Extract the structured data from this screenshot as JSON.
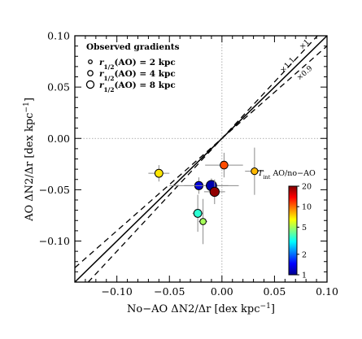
{
  "chart_data": {
    "type": "scatter",
    "title": "",
    "xlabel": "No−AO ΔN2/Δr  [dex kpc",
    "xlabel_exp": "−1",
    "xlabel_close": "]",
    "ylabel": "AO ΔN2/Δr  [dex kpc",
    "ylabel_exp": "−1",
    "ylabel_close": "]",
    "xlim": [
      -0.14,
      0.1
    ],
    "ylim": [
      -0.14,
      0.1
    ],
    "x_ticks": [
      -0.1,
      -0.05,
      0.0,
      0.05,
      0.1
    ],
    "x_tick_labels": [
      "−0.10",
      "−0.05",
      "0.00",
      "0.05",
      "0.10"
    ],
    "y_ticks": [
      -0.1,
      -0.05,
      0.0,
      0.05,
      0.1
    ],
    "y_tick_labels": [
      "−0.10",
      "−0.05",
      "0.00",
      "0.05",
      "0.10"
    ],
    "grid": false,
    "zero_lines": true,
    "reference_lines": [
      {
        "label": "×1",
        "slope": 1.0,
        "style": "solid"
      },
      {
        "label": "×1.1",
        "slope": 1.1,
        "style": "dashed"
      },
      {
        "label": "×0.9",
        "slope": 0.9,
        "style": "dashed"
      }
    ],
    "size_legend": {
      "title": "Observed gradients",
      "entries": [
        {
          "label_main": "r",
          "label_sub": "1/2",
          "label_rest": "(AO) = 2 kpc",
          "r_half_kpc": 2
        },
        {
          "label_main": "r",
          "label_sub": "1/2",
          "label_rest": "(AO) = 4 kpc",
          "r_half_kpc": 4
        },
        {
          "label_main": "r",
          "label_sub": "1/2",
          "label_rest": "(AO) = 8 kpc",
          "r_half_kpc": 8
        }
      ]
    },
    "colorbar": {
      "label_main": "T",
      "label_sub": "int",
      "label_rest": " AO/no−AO",
      "scale": "log",
      "range": [
        1,
        20
      ],
      "ticks": [
        1,
        2,
        5,
        10,
        20
      ],
      "tick_labels": [
        "1",
        "2",
        "5",
        "10",
        "20"
      ],
      "colormap": [
        "#00008f",
        "#0000ff",
        "#0080ff",
        "#00ffff",
        "#80ff80",
        "#ffff00",
        "#ff8000",
        "#ff0000",
        "#800000"
      ]
    },
    "points": [
      {
        "x": -0.06,
        "y": -0.034,
        "xerr": 0.01,
        "yerr": 0.008,
        "r_half_kpc": 3.6,
        "t_int": 7.0
      },
      {
        "x": -0.022,
        "y": -0.046,
        "xerr": 0.028,
        "yerr": 0.008,
        "r_half_kpc": 3.8,
        "t_int": 1.3
      },
      {
        "x": -0.01,
        "y": -0.046,
        "xerr": 0.026,
        "yerr": 0.007,
        "r_half_kpc": 6.0,
        "t_int": 1.1
      },
      {
        "x": -0.007,
        "y": -0.052,
        "xerr": 0.01,
        "yerr": 0.012,
        "r_half_kpc": 4.8,
        "t_int": 19.0
      },
      {
        "x": 0.002,
        "y": -0.026,
        "xerr": 0.018,
        "yerr": 0.012,
        "r_half_kpc": 3.4,
        "t_int": 11.0
      },
      {
        "x": -0.023,
        "y": -0.073,
        "xerr": 0.005,
        "yerr": 0.018,
        "r_half_kpc": 3.6,
        "t_int": 3.5
      },
      {
        "x": -0.018,
        "y": -0.081,
        "xerr": 0.004,
        "yerr": 0.022,
        "r_half_kpc": 2.2,
        "t_int": 5.0
      },
      {
        "x": 0.031,
        "y": -0.032,
        "xerr": 0.009,
        "yerr": 0.023,
        "r_half_kpc": 2.5,
        "t_int": 8.0
      }
    ]
  }
}
